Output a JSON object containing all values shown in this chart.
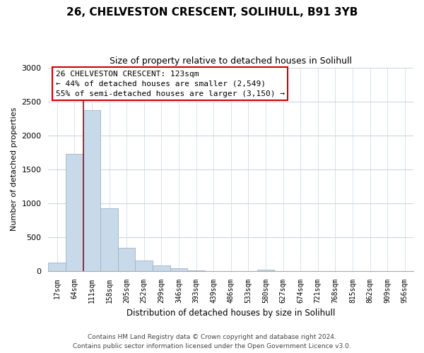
{
  "title": "26, CHELVESTON CRESCENT, SOLIHULL, B91 3YB",
  "subtitle": "Size of property relative to detached houses in Solihull",
  "xlabel": "Distribution of detached houses by size in Solihull",
  "ylabel": "Number of detached properties",
  "bar_labels": [
    "17sqm",
    "64sqm",
    "111sqm",
    "158sqm",
    "205sqm",
    "252sqm",
    "299sqm",
    "346sqm",
    "393sqm",
    "439sqm",
    "486sqm",
    "533sqm",
    "580sqm",
    "627sqm",
    "674sqm",
    "721sqm",
    "768sqm",
    "815sqm",
    "862sqm",
    "909sqm",
    "956sqm"
  ],
  "bar_values": [
    120,
    1720,
    2370,
    920,
    345,
    155,
    80,
    38,
    5,
    0,
    0,
    0,
    22,
    0,
    0,
    0,
    0,
    0,
    0,
    0,
    0
  ],
  "bar_color": "#c8d9ea",
  "bar_edge_color": "#9ab5cc",
  "vline_color": "#bb0000",
  "ylim": [
    0,
    3000
  ],
  "yticks": [
    0,
    500,
    1000,
    1500,
    2000,
    2500,
    3000
  ],
  "annotation_title": "26 CHELVESTON CRESCENT: 123sqm",
  "annotation_line1": "← 44% of detached houses are smaller (2,549)",
  "annotation_line2": "55% of semi-detached houses are larger (3,150) →",
  "annotation_box_color": "#ffffff",
  "annotation_box_edge": "#cc0000",
  "footer_line1": "Contains HM Land Registry data © Crown copyright and database right 2024.",
  "footer_line2": "Contains public sector information licensed under the Open Government Licence v3.0.",
  "bg_color": "#ffffff",
  "grid_color": "#ccd6e0"
}
